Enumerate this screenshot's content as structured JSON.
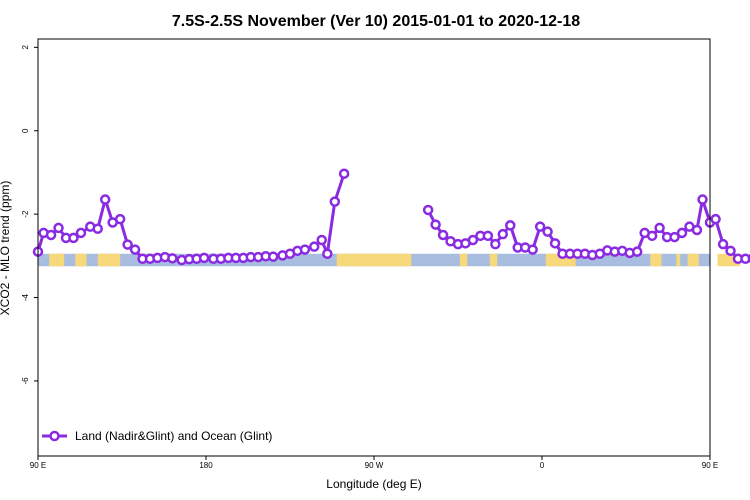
{
  "chart_data": {
    "type": "line",
    "title": "7.5S-2.5S November (Ver 10)   2015-01-01 to 2020-12-18",
    "xlabel": "Longitude (deg E)",
    "ylabel": "XCO2 - MLO trend (ppm)",
    "xlim": [
      90,
      450
    ],
    "ylim": [
      -7.8,
      2.2
    ],
    "x_ticks": [
      {
        "value": 90,
        "label": "90 E"
      },
      {
        "value": 180,
        "label": "180"
      },
      {
        "value": 270,
        "label": "90 W"
      },
      {
        "value": 360,
        "label": "0"
      },
      {
        "value": 450,
        "label": "90 E"
      },
      {
        "value": 540,
        "label": "180"
      }
    ],
    "y_ticks": [
      {
        "value": 2,
        "label": "2"
      },
      {
        "value": 0,
        "label": "0"
      },
      {
        "value": -2,
        "label": "-2"
      },
      {
        "value": -4,
        "label": "-4"
      },
      {
        "value": -6,
        "label": "-6"
      }
    ],
    "grid": false,
    "legend_position": "bottom-left",
    "series": [
      {
        "name": "Land (Nadir&Glint) and Ocean (Glint)",
        "color": "#8a2be2",
        "segments": [
          [
            [
              90,
              -2.9
            ],
            [
              93,
              -2.45
            ],
            [
              97,
              -2.5
            ],
            [
              101,
              -2.33
            ],
            [
              105,
              -2.57
            ],
            [
              109,
              -2.57
            ],
            [
              113,
              -2.45
            ],
            [
              118,
              -2.3
            ],
            [
              122,
              -2.35
            ],
            [
              126,
              -1.65
            ],
            [
              130,
              -2.2
            ],
            [
              134,
              -2.12
            ],
            [
              138,
              -2.73
            ],
            [
              142,
              -2.85
            ],
            [
              146,
              -3.07
            ],
            [
              150,
              -3.07
            ],
            [
              154,
              -3.05
            ],
            [
              158,
              -3.03
            ],
            [
              162,
              -3.06
            ],
            [
              167,
              -3.1
            ],
            [
              171,
              -3.08
            ],
            [
              175,
              -3.07
            ],
            [
              179,
              -3.05
            ],
            [
              184,
              -3.07
            ],
            [
              188,
              -3.07
            ],
            [
              192,
              -3.05
            ],
            [
              196,
              -3.05
            ],
            [
              200,
              -3.05
            ],
            [
              204,
              -3.03
            ],
            [
              208,
              -3.03
            ],
            [
              212,
              -3.01
            ],
            [
              216,
              -3.02
            ],
            [
              221,
              -2.99
            ],
            [
              225,
              -2.95
            ],
            [
              229,
              -2.88
            ],
            [
              233,
              -2.85
            ],
            [
              238,
              -2.78
            ],
            [
              242,
              -2.62
            ],
            [
              245,
              -2.95
            ],
            [
              249,
              -1.7
            ],
            [
              254,
              -1.03
            ]
          ],
          [
            [
              299,
              -1.9
            ],
            [
              303,
              -2.25
            ],
            [
              307,
              -2.5
            ],
            [
              311,
              -2.65
            ],
            [
              315,
              -2.72
            ],
            [
              319,
              -2.7
            ],
            [
              323,
              -2.62
            ],
            [
              327,
              -2.52
            ],
            [
              331,
              -2.52
            ],
            [
              335,
              -2.72
            ],
            [
              339,
              -2.48
            ],
            [
              343,
              -2.27
            ],
            [
              347,
              -2.8
            ],
            [
              351,
              -2.8
            ],
            [
              355,
              -2.85
            ],
            [
              359,
              -2.3
            ],
            [
              363,
              -2.42
            ],
            [
              367,
              -2.7
            ],
            [
              371,
              -2.95
            ],
            [
              375,
              -2.95
            ],
            [
              379,
              -2.95
            ],
            [
              383,
              -2.95
            ],
            [
              387,
              -2.98
            ],
            [
              391,
              -2.95
            ],
            [
              395,
              -2.87
            ],
            [
              399,
              -2.9
            ],
            [
              403,
              -2.88
            ],
            [
              407,
              -2.93
            ],
            [
              411,
              -2.9
            ],
            [
              415,
              -2.45
            ],
            [
              419,
              -2.52
            ],
            [
              423,
              -2.33
            ],
            [
              427,
              -2.55
            ],
            [
              431,
              -2.55
            ],
            [
              435,
              -2.45
            ],
            [
              439,
              -2.3
            ],
            [
              443,
              -2.38
            ],
            [
              446,
              -1.65
            ],
            [
              450,
              -2.2
            ],
            [
              453,
              -2.12
            ],
            [
              457,
              -2.72
            ],
            [
              461,
              -2.88
            ],
            [
              465,
              -3.07
            ],
            [
              469,
              -3.07
            ],
            [
              473,
              -3.06
            ],
            [
              477,
              -3.03
            ]
          ]
        ]
      }
    ],
    "background_band": {
      "y_range": [
        -3.25,
        -2.95
      ],
      "ocean_color": "#a9bde0",
      "land_color": "#f7d97b",
      "land_spans": [
        [
          96,
          100
        ],
        [
          100,
          104
        ],
        [
          110,
          116
        ],
        [
          122,
          134
        ],
        [
          250,
          290
        ],
        [
          316,
          320
        ],
        [
          332,
          336
        ],
        [
          362,
          378
        ],
        [
          418,
          424
        ],
        [
          432,
          434
        ],
        [
          438,
          444
        ],
        [
          454,
          466
        ]
      ]
    }
  }
}
